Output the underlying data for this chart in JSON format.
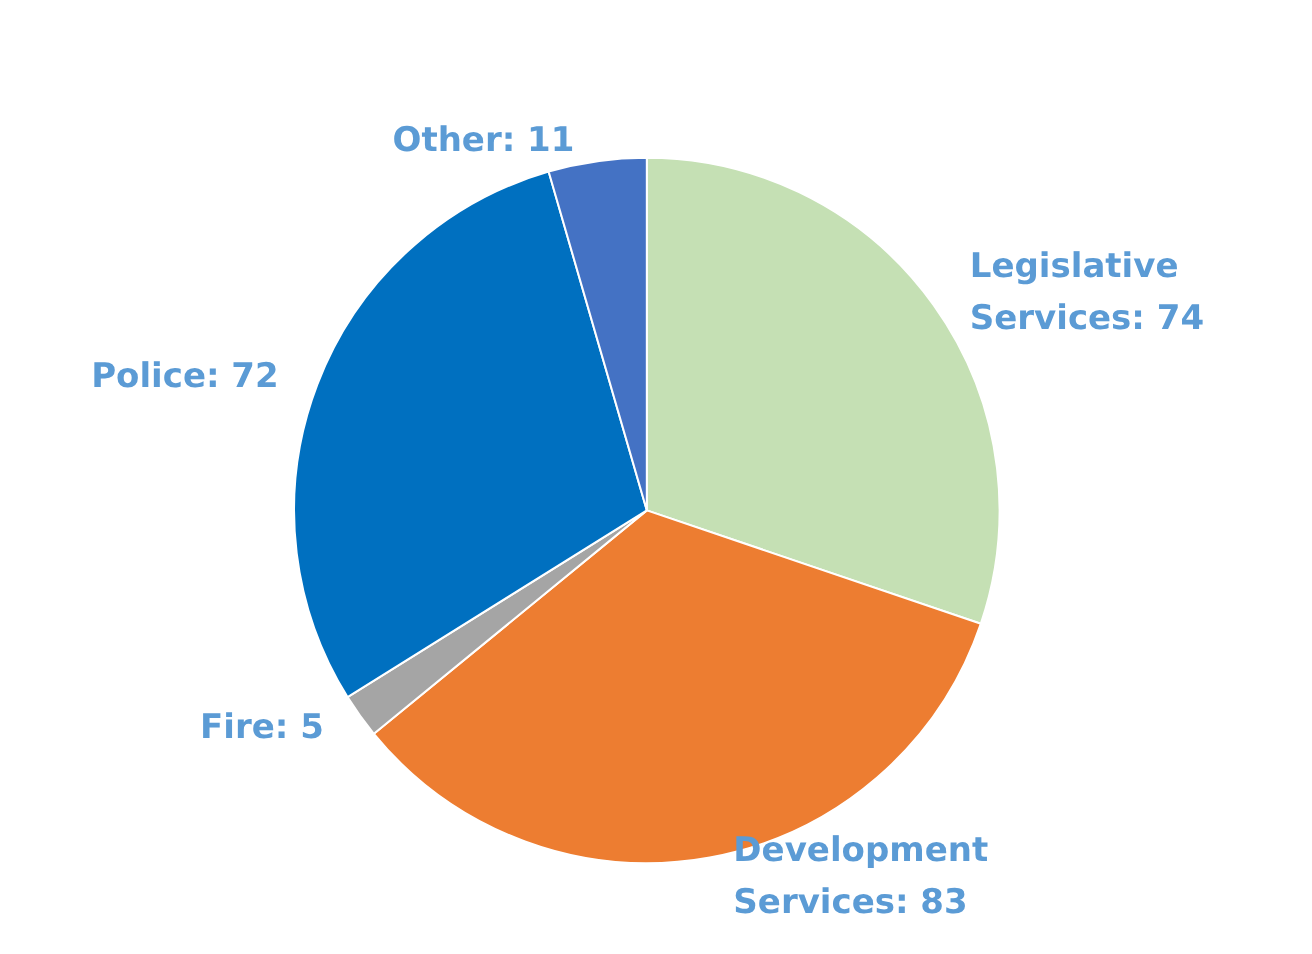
{
  "chart_data": {
    "type": "pie",
    "categories": [
      "Legislative Services",
      "Development Services",
      "Fire",
      "Police",
      "Other"
    ],
    "values": [
      74,
      83,
      5,
      72,
      11
    ],
    "colors": [
      "#c5e0b4",
      "#ed7d31",
      "#a5a5a5",
      "#0070c0",
      "#4472c4"
    ],
    "value_labels": [
      ": 74",
      ": 83",
      ": 5",
      ": 72",
      ": 11"
    ],
    "legend": false
  }
}
